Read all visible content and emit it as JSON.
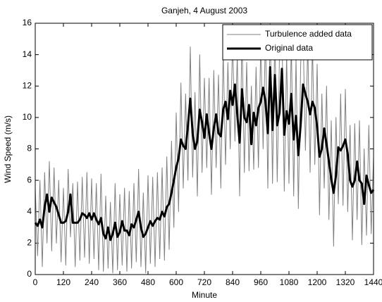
{
  "chart_data": {
    "type": "line",
    "title": "Ganjeh, 4 August 2003",
    "x_label": "Minute",
    "y_label": "Wind Speed (m/s)",
    "x": [
      0,
      10,
      20,
      30,
      40,
      50,
      60,
      70,
      80,
      90,
      100,
      110,
      120,
      130,
      140,
      150,
      160,
      170,
      180,
      190,
      200,
      210,
      220,
      230,
      240,
      250,
      260,
      270,
      280,
      290,
      300,
      310,
      320,
      330,
      340,
      350,
      360,
      370,
      380,
      390,
      400,
      410,
      420,
      430,
      440,
      450,
      460,
      470,
      480,
      490,
      500,
      510,
      520,
      530,
      540,
      550,
      560,
      570,
      580,
      590,
      600,
      610,
      620,
      630,
      640,
      650,
      660,
      670,
      680,
      690,
      700,
      710,
      720,
      730,
      740,
      750,
      760,
      770,
      780,
      790,
      800,
      810,
      820,
      830,
      840,
      850,
      860,
      870,
      880,
      890,
      900,
      910,
      920,
      930,
      940,
      950,
      960,
      970,
      980,
      990,
      1000,
      1010,
      1020,
      1030,
      1040,
      1050,
      1060,
      1070,
      1080,
      1090,
      1100,
      1110,
      1120,
      1130,
      1140,
      1150,
      1160,
      1170,
      1180,
      1190,
      1200,
      1210,
      1220,
      1230,
      1240,
      1250,
      1260,
      1270,
      1280,
      1290,
      1300,
      1310,
      1320,
      1330,
      1340,
      1350,
      1360,
      1370,
      1380,
      1390,
      1400,
      1410,
      1420,
      1430,
      1440
    ],
    "series": [
      {
        "name": "Turbulence added data",
        "color": "#808080",
        "width": 1,
        "values": [
          5.5,
          1.2,
          6.0,
          0.5,
          6.5,
          2.0,
          7.2,
          1.5,
          6.8,
          2.0,
          6.0,
          0.8,
          5.5,
          0.6,
          6.7,
          2.4,
          5.8,
          0.5,
          5.9,
          0.9,
          6.2,
          1.1,
          6.5,
          0.7,
          6.1,
          1.0,
          5.8,
          0.3,
          6.4,
          0.2,
          5.0,
          0.4,
          4.6,
          0.1,
          5.8,
          0.3,
          5.1,
          0.6,
          5.5,
          0.2,
          5.3,
          0.4,
          5.8,
          0.8,
          6.7,
          0.5,
          5.2,
          0.1,
          6.3,
          0.7,
          6.2,
          0.5,
          6.5,
          1.0,
          6.8,
          0.9,
          7.5,
          1.6,
          8.5,
          3.0,
          10.3,
          4.0,
          12.2,
          5.5,
          11.5,
          6.0,
          14.5,
          6.2,
          11.6,
          5.0,
          14.0,
          6.5,
          12.5,
          6.8,
          12.5,
          5.1,
          13.0,
          6.8,
          12.7,
          5.5,
          14.3,
          7.0,
          13.5,
          8.0,
          15.0,
          8.5,
          14.0,
          5.0,
          15.5,
          6.5,
          13.5,
          6.6,
          12.0,
          6.7,
          13.2,
          6.8,
          14.8,
          8.0,
          15.5,
          5.5,
          16.0,
          5.8,
          15.5,
          5.9,
          14.2,
          15.8,
          5.3,
          14.0,
          5.8,
          15.0,
          5.0,
          13.8,
          4.2,
          13.5,
          15.5,
          7.9,
          14.8,
          6.5,
          14.7,
          7.0,
          13.4,
          3.8,
          11.5,
          5.5,
          12.0,
          3.5,
          9.8,
          1.8,
          10.0,
          4.5,
          11.5,
          4.4,
          11.8,
          4.0,
          9.5,
          2.2,
          9.6,
          3.5,
          9.8,
          1.9,
          8.0,
          2.5,
          9.5,
          2.6,
          7.5
        ]
      },
      {
        "name": "Original data",
        "color": "#000000",
        "width": 3,
        "values": [
          3.3,
          3.1,
          3.5,
          3.0,
          4.3,
          5.1,
          4.0,
          4.9,
          4.6,
          4.3,
          3.8,
          3.3,
          3.3,
          3.4,
          4.0,
          5.1,
          3.3,
          3.3,
          3.3,
          3.5,
          3.9,
          3.8,
          3.6,
          3.9,
          3.5,
          3.9,
          3.5,
          3.2,
          3.6,
          2.6,
          2.3,
          3.0,
          2.2,
          2.6,
          3.3,
          2.4,
          2.7,
          3.4,
          2.8,
          2.8,
          2.5,
          3.2,
          3.0,
          3.5,
          4.0,
          3.0,
          2.4,
          2.6,
          3.0,
          3.4,
          3.1,
          3.4,
          3.6,
          3.5,
          4.0,
          3.7,
          4.3,
          4.5,
          5.2,
          6.0,
          6.8,
          7.4,
          8.6,
          8.2,
          8.0,
          9.5,
          11.2,
          9.0,
          8.0,
          8.5,
          10.5,
          9.7,
          8.7,
          10.2,
          9.0,
          8.0,
          9.3,
          10.2,
          9.0,
          8.8,
          10.5,
          11.0,
          9.9,
          11.7,
          10.8,
          12.1,
          10.2,
          8.4,
          11.8,
          10.0,
          9.7,
          10.8,
          8.3,
          10.3,
          9.5,
          10.6,
          11.0,
          11.9,
          11.0,
          9.0,
          13.2,
          9.2,
          12.7,
          9.5,
          10.3,
          13.1,
          8.9,
          10.4,
          9.6,
          11.5,
          8.6,
          10.1,
          7.6,
          9.6,
          12.1,
          11.5,
          11.0,
          10.2,
          11.0,
          10.6,
          9.4,
          7.5,
          8.0,
          9.3,
          8.3,
          7.2,
          6.1,
          5.2,
          6.3,
          8.1,
          7.9,
          8.2,
          8.6,
          7.7,
          6.0,
          5.6,
          6.0,
          7.2,
          6.0,
          5.8,
          4.5,
          6.3,
          5.7,
          5.2,
          5.4
        ]
      }
    ],
    "xlim": [
      0,
      1440
    ],
    "xticks": [
      0,
      120,
      240,
      360,
      480,
      600,
      720,
      840,
      960,
      1080,
      1200,
      1320,
      1440
    ],
    "ylim": [
      0,
      16
    ],
    "yticks": [
      0,
      2,
      4,
      6,
      8,
      10,
      12,
      14,
      16
    ],
    "grid": false,
    "legend": "northeast"
  }
}
